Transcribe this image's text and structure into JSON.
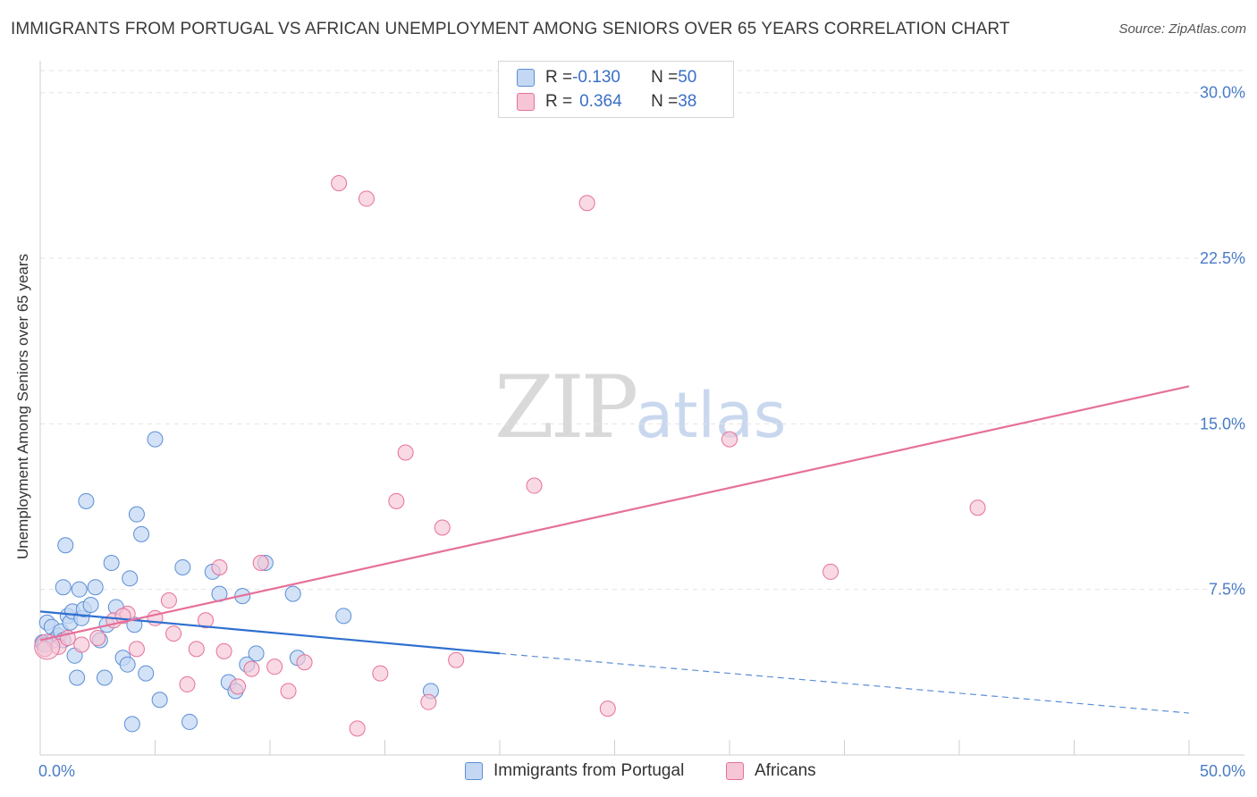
{
  "title": "IMMIGRANTS FROM PORTUGAL VS AFRICAN UNEMPLOYMENT AMONG SENIORS OVER 65 YEARS CORRELATION CHART",
  "source": "Source: ZipAtlas.com",
  "watermark": {
    "zip": "ZIP",
    "atlas": "atlas"
  },
  "legend": {
    "series1": {
      "r_label": "R = ",
      "r_value": "-0.130",
      "n_label": "N = ",
      "n_value": "50"
    },
    "series2": {
      "r_label": "R = ",
      "r_value": "0.364",
      "n_label": "N = ",
      "n_value": "38"
    }
  },
  "bottom_legend": {
    "series1": "Immigrants from Portugal",
    "series2": "Africans"
  },
  "colors": {
    "blue": "#5b8ed6",
    "blue_fill": "#c4d8f3",
    "pink": "#e6709a",
    "pink_fill": "#f6c6d6",
    "axis_text": "#4a7cc7"
  },
  "chart_data": {
    "type": "scatter",
    "ylabel": "Unemployment Among Seniors over 65 years",
    "xlim": [
      0,
      50
    ],
    "ylim": [
      0,
      31
    ],
    "x_tick_labels": {
      "min": "0.0%",
      "max": "50.0%"
    },
    "y_ticks": [
      {
        "value": 7.5,
        "label": "7.5%"
      },
      {
        "value": 15,
        "label": "15.0%"
      },
      {
        "value": 22.5,
        "label": "22.5%"
      },
      {
        "value": 30,
        "label": "30.0%"
      }
    ],
    "series": [
      {
        "name": "Immigrants from Portugal",
        "color": "#5b8ed6",
        "trend": {
          "x0": 0,
          "y0": 6.5,
          "x1": 20,
          "y1": 4.6,
          "dash_to_x": 50,
          "dash_to_y": 1.9
        },
        "points": [
          [
            0.1,
            5.1
          ],
          [
            0.2,
            5.0
          ],
          [
            0.3,
            6.0
          ],
          [
            0.5,
            5.8
          ],
          [
            0.6,
            5.2
          ],
          [
            0.8,
            5.4
          ],
          [
            0.9,
            5.6
          ],
          [
            1.0,
            7.6
          ],
          [
            1.0,
            5.2
          ],
          [
            1.1,
            9.5
          ],
          [
            1.2,
            6.3
          ],
          [
            1.3,
            6.0
          ],
          [
            1.4,
            6.5
          ],
          [
            1.5,
            4.5
          ],
          [
            1.6,
            3.5
          ],
          [
            1.7,
            7.5
          ],
          [
            1.8,
            6.2
          ],
          [
            1.9,
            6.6
          ],
          [
            2.0,
            11.5
          ],
          [
            2.2,
            6.8
          ],
          [
            2.4,
            7.6
          ],
          [
            2.6,
            5.2
          ],
          [
            2.8,
            3.5
          ],
          [
            2.9,
            5.9
          ],
          [
            3.1,
            8.7
          ],
          [
            3.3,
            6.7
          ],
          [
            3.6,
            4.4
          ],
          [
            3.8,
            4.1
          ],
          [
            3.9,
            8.0
          ],
          [
            4.1,
            5.9
          ],
          [
            4.2,
            10.9
          ],
          [
            4.4,
            10.0
          ],
          [
            4.6,
            3.7
          ],
          [
            5.0,
            14.3
          ],
          [
            5.2,
            2.5
          ],
          [
            6.2,
            8.5
          ],
          [
            6.5,
            1.5
          ],
          [
            7.5,
            8.3
          ],
          [
            7.8,
            7.3
          ],
          [
            8.2,
            3.3
          ],
          [
            8.5,
            2.9
          ],
          [
            8.8,
            7.2
          ],
          [
            9.0,
            4.1
          ],
          [
            9.4,
            4.6
          ],
          [
            9.8,
            8.7
          ],
          [
            11.0,
            7.3
          ],
          [
            11.2,
            4.4
          ],
          [
            13.2,
            6.3
          ],
          [
            17.0,
            2.9
          ],
          [
            4.0,
            1.4
          ]
        ]
      },
      {
        "name": "Africans",
        "color": "#e6709a",
        "trend": {
          "x0": 0,
          "y0": 5.2,
          "x1": 50,
          "y1": 16.7
        },
        "points": [
          [
            0.2,
            4.8
          ],
          [
            0.8,
            4.9
          ],
          [
            1.2,
            5.3
          ],
          [
            1.8,
            5.0
          ],
          [
            2.5,
            5.3
          ],
          [
            3.2,
            6.1
          ],
          [
            3.8,
            6.4
          ],
          [
            4.2,
            4.8
          ],
          [
            5.0,
            6.2
          ],
          [
            5.6,
            7.0
          ],
          [
            5.8,
            5.5
          ],
          [
            6.4,
            3.2
          ],
          [
            6.8,
            4.8
          ],
          [
            7.2,
            6.1
          ],
          [
            7.8,
            8.5
          ],
          [
            8.0,
            4.7
          ],
          [
            8.6,
            3.1
          ],
          [
            9.2,
            3.9
          ],
          [
            9.6,
            8.7
          ],
          [
            10.2,
            4.0
          ],
          [
            10.8,
            2.9
          ],
          [
            11.5,
            4.2
          ],
          [
            13.0,
            25.9
          ],
          [
            13.8,
            1.2
          ],
          [
            14.2,
            25.2
          ],
          [
            14.8,
            3.7
          ],
          [
            15.5,
            11.5
          ],
          [
            15.9,
            13.7
          ],
          [
            16.9,
            2.4
          ],
          [
            17.5,
            10.3
          ],
          [
            18.1,
            4.3
          ],
          [
            21.5,
            12.2
          ],
          [
            23.8,
            25.0
          ],
          [
            24.7,
            2.1
          ],
          [
            30.0,
            14.3
          ],
          [
            34.4,
            8.3
          ],
          [
            40.8,
            11.2
          ],
          [
            3.6,
            6.3
          ]
        ]
      }
    ]
  }
}
